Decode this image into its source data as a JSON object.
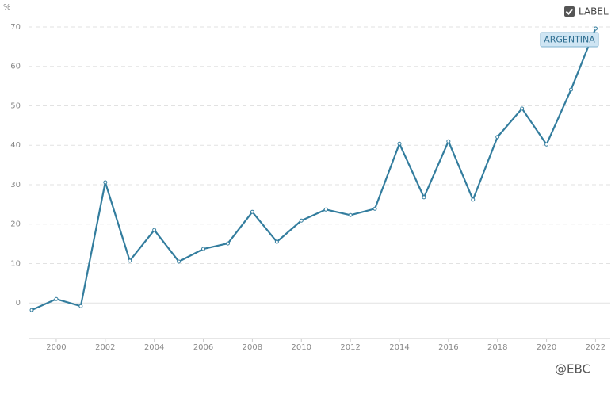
{
  "chart_data": {
    "type": "line",
    "y_unit": "%",
    "label_toggle": "LABEL",
    "watermark": "@EBC",
    "x": [
      1999,
      2000,
      2001,
      2002,
      2003,
      2004,
      2005,
      2006,
      2007,
      2008,
      2009,
      2010,
      2011,
      2012,
      2013,
      2014,
      2015,
      2016,
      2017,
      2018,
      2019,
      2020,
      2021,
      2022
    ],
    "series": [
      {
        "name": "ARGENTINA",
        "color": "#337d9e",
        "values": [
          -1.8,
          1.0,
          -0.8,
          30.6,
          10.7,
          18.5,
          10.5,
          13.7,
          15.1,
          23.1,
          15.5,
          20.9,
          23.7,
          22.3,
          23.9,
          40.4,
          26.8,
          41.0,
          26.2,
          42.1,
          49.3,
          40.2,
          54.1,
          69.6
        ]
      }
    ],
    "xlim": [
      1998.87,
      2022.6
    ],
    "xticks": [
      2000,
      2002,
      2004,
      2006,
      2008,
      2010,
      2012,
      2014,
      2016,
      2018,
      2020,
      2022
    ],
    "ylim": [
      -9,
      72
    ],
    "yticks": [
      0,
      10,
      20,
      30,
      40,
      50,
      60,
      70
    ],
    "grid": true
  }
}
